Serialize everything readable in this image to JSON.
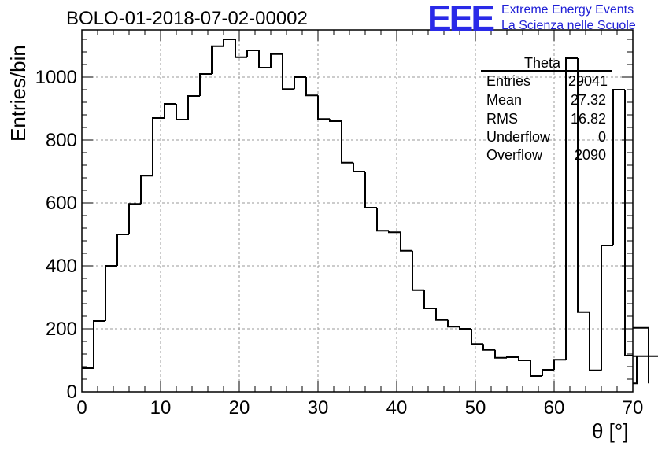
{
  "title": "BOLO-01-2018-07-02-00002",
  "logo": {
    "mark": "EEE",
    "line1": "Extreme Energy Events",
    "line2": "La Scienza nelle Scuole",
    "color": "#2a2ae8"
  },
  "stats_box": {
    "title": "Theta",
    "rows": [
      {
        "label": "Entries",
        "value": "29041"
      },
      {
        "label": "Mean",
        "value": "27.32"
      },
      {
        "label": "RMS",
        "value": "16.82"
      },
      {
        "label": "Underflow",
        "value": "0"
      },
      {
        "label": "Overflow",
        "value": "2090"
      }
    ]
  },
  "chart_data": {
    "type": "histogram",
    "xlabel": "θ [°]",
    "ylabel": "Entries/bin",
    "xlim": [
      0,
      70
    ],
    "ylim": [
      0,
      1150
    ],
    "grid": true,
    "x_ticks": [
      0,
      10,
      20,
      30,
      40,
      50,
      60,
      70
    ],
    "y_ticks": [
      0,
      200,
      400,
      600,
      800,
      1000
    ],
    "bin_width": 1.5,
    "bin_edges_start": 0,
    "values": [
      75,
      225,
      400,
      500,
      597,
      687,
      870,
      915,
      865,
      940,
      1010,
      1098,
      1120,
      1063,
      1085,
      1030,
      1073,
      962,
      1000,
      942,
      867,
      860,
      728,
      700,
      585,
      512,
      507,
      448,
      323,
      265,
      228,
      207,
      200,
      152,
      133,
      108,
      110,
      100,
      50,
      70,
      102,
      1060,
      253,
      68,
      465,
      960,
      115,
      27,
      203,
      113
    ]
  }
}
